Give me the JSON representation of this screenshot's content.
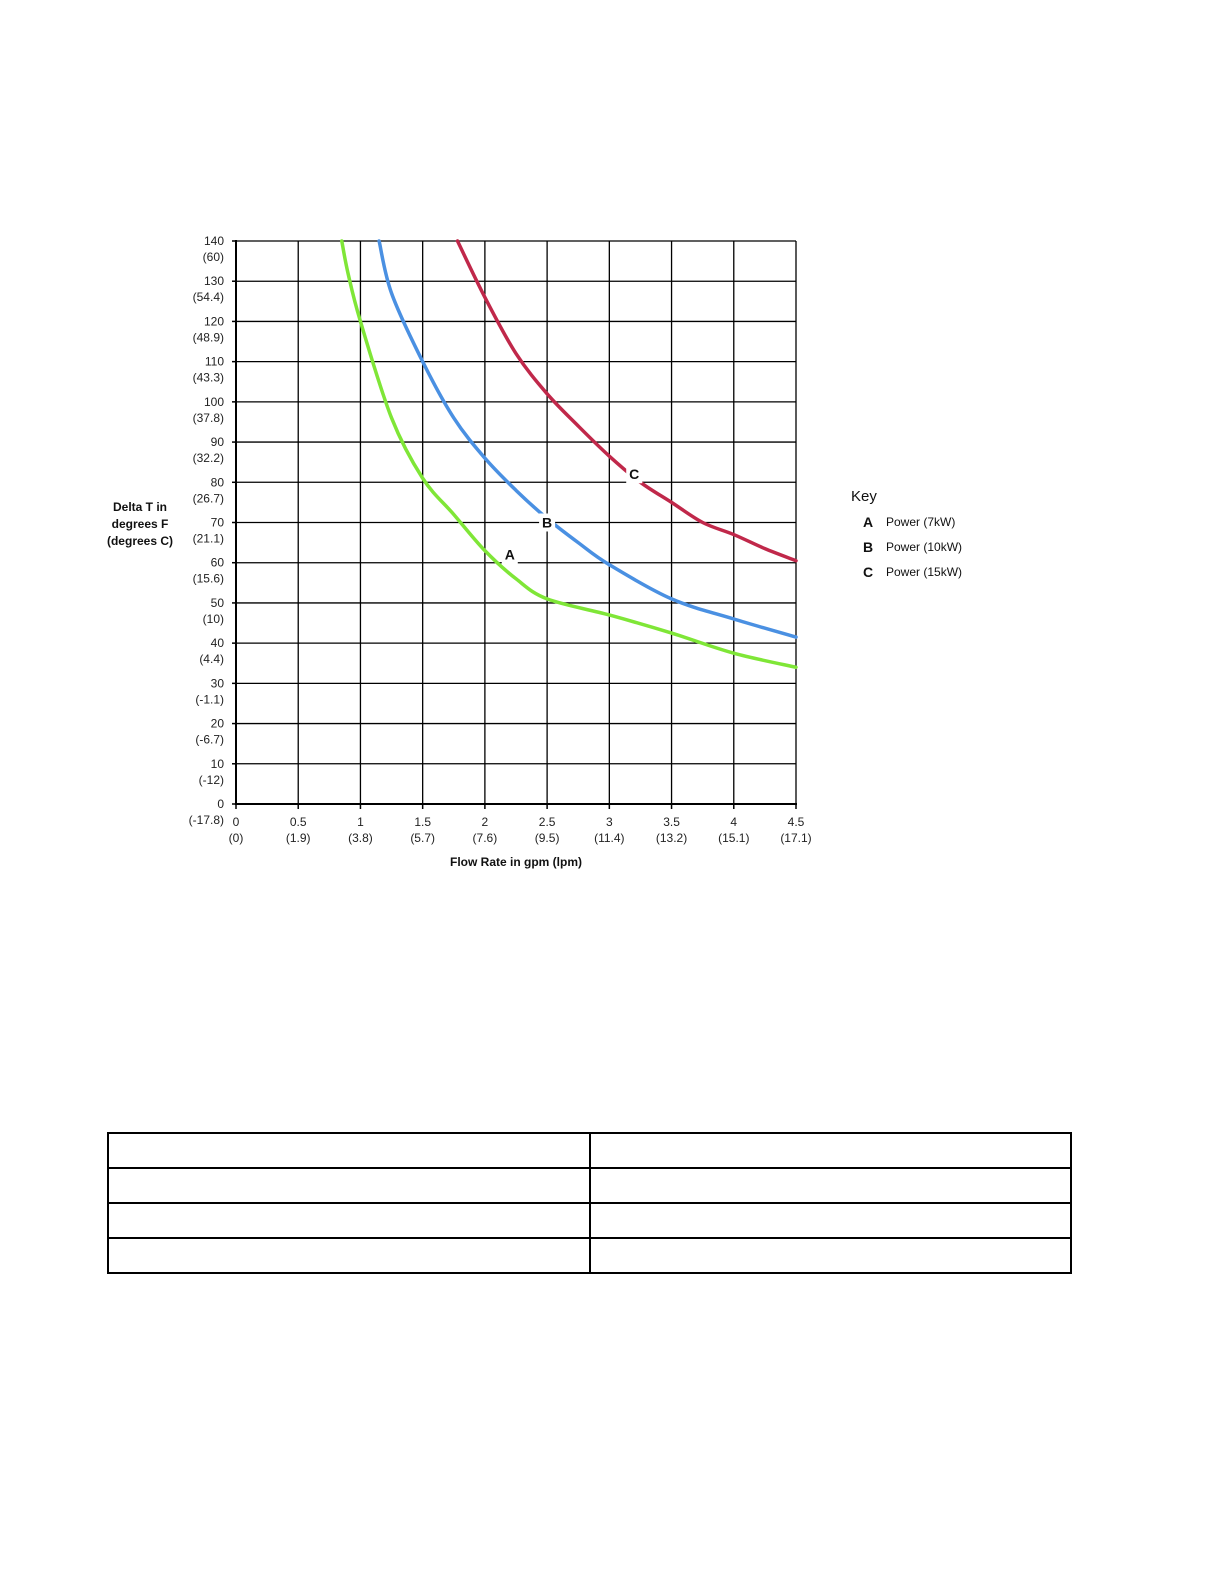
{
  "chart_data": {
    "type": "line",
    "xlabel": "Flow Rate in gpm (lpm)",
    "ylabel": [
      "Delta T in",
      "degrees F",
      "(degrees C)"
    ],
    "xlim": [
      0,
      4.5
    ],
    "ylim": [
      0,
      140
    ],
    "grid": true,
    "x_ticks": [
      {
        "value": 0,
        "label": "0",
        "sub": "(0)"
      },
      {
        "value": 0.5,
        "label": "0.5",
        "sub": "(1.9)"
      },
      {
        "value": 1,
        "label": "1",
        "sub": "(3.8)"
      },
      {
        "value": 1.5,
        "label": "1.5",
        "sub": "(5.7)"
      },
      {
        "value": 2,
        "label": "2",
        "sub": "(7.6)"
      },
      {
        "value": 2.5,
        "label": "2.5",
        "sub": "(9.5)"
      },
      {
        "value": 3,
        "label": "3",
        "sub": "(11.4)"
      },
      {
        "value": 3.5,
        "label": "3.5",
        "sub": "(13.2)"
      },
      {
        "value": 4,
        "label": "4",
        "sub": "(15.1)"
      },
      {
        "value": 4.5,
        "label": "4.5",
        "sub": "(17.1)"
      }
    ],
    "y_ticks": [
      {
        "value": 140,
        "label": "140",
        "sub": "(60)"
      },
      {
        "value": 130,
        "label": "130",
        "sub": "(54.4)"
      },
      {
        "value": 120,
        "label": "120",
        "sub": "(48.9)"
      },
      {
        "value": 110,
        "label": "110",
        "sub": "(43.3)"
      },
      {
        "value": 100,
        "label": "100",
        "sub": "(37.8)"
      },
      {
        "value": 90,
        "label": "90",
        "sub": "(32.2)"
      },
      {
        "value": 80,
        "label": "80",
        "sub": "(26.7)"
      },
      {
        "value": 70,
        "label": "70",
        "sub": "(21.1)"
      },
      {
        "value": 60,
        "label": "60",
        "sub": "(15.6)"
      },
      {
        "value": 50,
        "label": "50",
        "sub": "(10)"
      },
      {
        "value": 40,
        "label": "40",
        "sub": "(4.4)"
      },
      {
        "value": 30,
        "label": "30",
        "sub": "(-1.1)"
      },
      {
        "value": 20,
        "label": "20",
        "sub": "(-6.7)"
      },
      {
        "value": 10,
        "label": "10",
        "sub": "(-12)"
      },
      {
        "value": 0,
        "label": "0",
        "sub": "(-17.8)"
      }
    ],
    "series": [
      {
        "name": "A",
        "color": "#7FE637",
        "points": [
          [
            0.85,
            140
          ],
          [
            0.9,
            132
          ],
          [
            1.0,
            120
          ],
          [
            1.25,
            96
          ],
          [
            1.5,
            81
          ],
          [
            1.75,
            72
          ],
          [
            2.0,
            63
          ],
          [
            2.25,
            56
          ],
          [
            2.5,
            51
          ],
          [
            3.0,
            47
          ],
          [
            3.5,
            42.5
          ],
          [
            4.0,
            37.5
          ],
          [
            4.5,
            34
          ]
        ]
      },
      {
        "name": "B",
        "color": "#4A90E2",
        "points": [
          [
            1.15,
            140
          ],
          [
            1.25,
            127
          ],
          [
            1.5,
            110
          ],
          [
            1.75,
            96
          ],
          [
            2.0,
            86
          ],
          [
            2.25,
            78
          ],
          [
            2.5,
            71
          ],
          [
            2.75,
            65
          ],
          [
            3.0,
            59.5
          ],
          [
            3.5,
            51
          ],
          [
            4.0,
            46
          ],
          [
            4.5,
            41.5
          ]
        ]
      },
      {
        "name": "C",
        "color": "#C0284A",
        "points": [
          [
            1.78,
            140
          ],
          [
            2.0,
            126
          ],
          [
            2.25,
            112
          ],
          [
            2.5,
            102
          ],
          [
            2.75,
            94
          ],
          [
            3.0,
            86.5
          ],
          [
            3.25,
            80
          ],
          [
            3.5,
            75
          ],
          [
            3.75,
            70
          ],
          [
            4.0,
            67
          ],
          [
            4.25,
            63.5
          ],
          [
            4.5,
            60.5
          ]
        ]
      }
    ],
    "curve_labels": [
      {
        "text": "A",
        "x": 2.2,
        "y": 62
      },
      {
        "text": "B",
        "x": 2.5,
        "y": 70
      },
      {
        "text": "C",
        "x": 3.2,
        "y": 82
      }
    ],
    "legend": {
      "title": "Key",
      "placement": "right",
      "entries": [
        {
          "letter": "A",
          "text": "Power (7kW)"
        },
        {
          "letter": "B",
          "text": "Power (10kW)"
        },
        {
          "letter": "C",
          "text": "Power (15kW)"
        }
      ]
    }
  },
  "table": {
    "rows": [
      [
        "",
        ""
      ],
      [
        "",
        ""
      ],
      [
        "",
        ""
      ],
      [
        "",
        ""
      ]
    ]
  }
}
